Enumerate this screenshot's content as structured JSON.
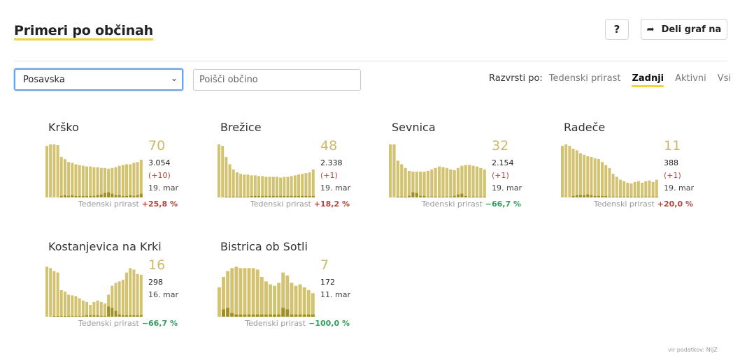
{
  "title": "Primeri po občinah",
  "help_label": "?",
  "share_label": "Deli graf na",
  "region_select": {
    "value": "Posavska"
  },
  "search": {
    "placeholder": "Poišči občino"
  },
  "sort": {
    "label": "Razvrsti po:",
    "options": [
      "Tedenski prirast",
      "Zadnji",
      "Aktivni",
      "Vsi"
    ],
    "active": "Zadnji"
  },
  "footnote": "vir podatkov: NIJZ",
  "colors": {
    "bar": "#d3c26f",
    "bar_dark": "#a08f24",
    "accent": "#f1d33b",
    "increase": "#b5443a",
    "decrease": "#2e9e5c"
  },
  "weekly_label": "Tedenski prirast",
  "chart_data": [
    {
      "type": "bar",
      "name": "Krško",
      "big": "70",
      "total": "3.054",
      "delta": "(+10)",
      "date": "19. mar",
      "weekly": "+25,8 %",
      "trend": "up",
      "values": [
        70,
        72,
        72,
        71,
        55,
        52,
        48,
        47,
        45,
        44,
        43,
        42,
        42,
        41,
        41,
        40,
        40,
        39,
        40,
        41,
        43,
        44,
        45,
        45,
        47,
        48,
        51
      ],
      "secondary": [
        0,
        0,
        0,
        0,
        2,
        3,
        2,
        3,
        2,
        2,
        2,
        2,
        2,
        2,
        3,
        4,
        6,
        7,
        5,
        3,
        3,
        2,
        2,
        3,
        2,
        3,
        5
      ]
    },
    {
      "type": "bar",
      "name": "Brežice",
      "big": "48",
      "total": "2.338",
      "delta": "(+1)",
      "date": "19. mar",
      "weekly": "+18,2 %",
      "trend": "up",
      "values": [
        72,
        70,
        55,
        45,
        38,
        34,
        32,
        31,
        31,
        30,
        30,
        29,
        29,
        28,
        28,
        28,
        28,
        27,
        28,
        28,
        29,
        30,
        31,
        32,
        33,
        34,
        38
      ],
      "secondary": [
        0,
        0,
        1,
        1,
        1,
        1,
        1,
        1,
        1,
        2,
        2,
        2,
        2,
        2,
        2,
        2,
        2,
        2,
        2,
        2,
        2,
        2,
        2,
        2,
        2,
        2,
        2
      ]
    },
    {
      "type": "bar",
      "name": "Sevnica",
      "big": "32",
      "total": "2.154",
      "delta": "(+1)",
      "date": "19. mar",
      "weekly": "−66,7 %",
      "trend": "down",
      "values": [
        72,
        72,
        50,
        45,
        40,
        36,
        35,
        35,
        35,
        35,
        36,
        38,
        40,
        42,
        41,
        40,
        38,
        37,
        40,
        43,
        44,
        44,
        43,
        42,
        40,
        38
      ],
      "secondary": [
        0,
        0,
        1,
        1,
        1,
        2,
        7,
        6,
        2,
        2,
        1,
        1,
        1,
        1,
        1,
        1,
        1,
        2,
        4,
        5,
        2,
        1,
        1,
        1,
        1,
        1
      ]
    },
    {
      "type": "bar",
      "name": "Radeče",
      "big": "11",
      "total": "388",
      "delta": "(+1)",
      "date": "19. mar",
      "weekly": "+20,0 %",
      "trend": "up",
      "values": [
        70,
        72,
        70,
        66,
        64,
        60,
        58,
        56,
        55,
        53,
        52,
        48,
        44,
        40,
        32,
        28,
        24,
        22,
        20,
        19,
        21,
        22,
        20,
        22,
        23,
        21,
        24
      ],
      "secondary": [
        0,
        0,
        0,
        2,
        3,
        3,
        3,
        4,
        3,
        2,
        2,
        2,
        2,
        1,
        1,
        1,
        1,
        1,
        1,
        1,
        1,
        1,
        1,
        1,
        1,
        1,
        1
      ]
    },
    {
      "type": "bar",
      "name": "Kostanjevica na Krki",
      "big": "16",
      "total": "298",
      "delta": "",
      "date": "16. mar",
      "weekly": "−66,7 %",
      "trend": "down",
      "values": [
        68,
        66,
        62,
        60,
        36,
        34,
        30,
        29,
        28,
        25,
        22,
        20,
        16,
        20,
        22,
        20,
        18,
        30,
        42,
        46,
        48,
        50,
        60,
        66,
        64,
        58,
        57
      ],
      "secondary": [
        0,
        0,
        1,
        1,
        1,
        1,
        1,
        1,
        1,
        1,
        1,
        2,
        2,
        2,
        2,
        1,
        1,
        14,
        12,
        8,
        3,
        2,
        2,
        2,
        2,
        2,
        2
      ]
    },
    {
      "type": "bar",
      "name": "Bistrica ob Sotli",
      "big": "7",
      "total": "172",
      "delta": "",
      "date": "11. mar",
      "weekly": "−100,0 %",
      "trend": "down",
      "values": [
        40,
        54,
        62,
        66,
        68,
        66,
        66,
        66,
        66,
        64,
        54,
        48,
        44,
        42,
        46,
        60,
        56,
        46,
        42,
        44,
        40,
        36,
        32
      ],
      "secondary": [
        0,
        10,
        12,
        5,
        3,
        3,
        3,
        3,
        3,
        3,
        3,
        3,
        3,
        3,
        3,
        12,
        10,
        3,
        3,
        3,
        3,
        3,
        3
      ]
    }
  ]
}
